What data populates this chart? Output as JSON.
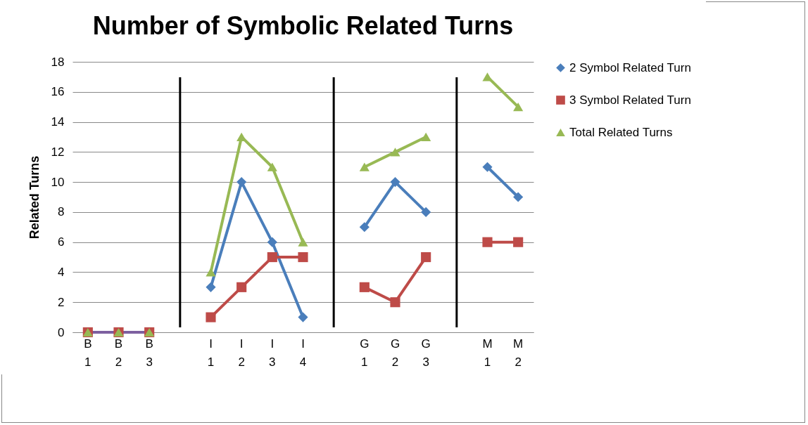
{
  "chart_data": {
    "type": "line",
    "title": "Number of Symbolic Related Turns",
    "ylabel": "Related Turns",
    "categories": [
      "B 1",
      "B 2",
      "B 3",
      null,
      "I 1",
      "I 2",
      "I 3",
      "I 4",
      null,
      "G 1",
      "G 2",
      "G 3",
      null,
      "M 1",
      "M 2"
    ],
    "series": [
      {
        "name": "2 Symbol Related Turn",
        "color": "#4a7ebb",
        "marker": "diamond",
        "values": [
          null,
          null,
          null,
          null,
          3,
          10,
          6,
          1,
          null,
          7,
          10,
          8,
          null,
          11,
          9
        ]
      },
      {
        "name": "3 Symbol Related Turn",
        "color": "#be4b48",
        "marker": "square",
        "values": [
          0,
          0,
          0,
          null,
          1,
          3,
          5,
          5,
          null,
          3,
          2,
          5,
          null,
          6,
          6
        ]
      },
      {
        "name": "Total Related Turns",
        "color": "#98b954",
        "marker": "triangle",
        "values": [
          0,
          0,
          0,
          null,
          4,
          13,
          11,
          6,
          null,
          11,
          12,
          13,
          null,
          17,
          15
        ]
      },
      {
        "color": "#7d60a0",
        "marker": "none",
        "values": [
          0,
          0,
          0,
          null,
          null,
          null,
          null,
          null,
          null,
          null,
          null,
          null,
          null,
          null,
          null
        ]
      }
    ],
    "ylim": [
      0,
      18
    ],
    "yticks": [
      0,
      2,
      4,
      6,
      8,
      10,
      12,
      14,
      16,
      18
    ],
    "grid": "y",
    "legend": "right"
  }
}
